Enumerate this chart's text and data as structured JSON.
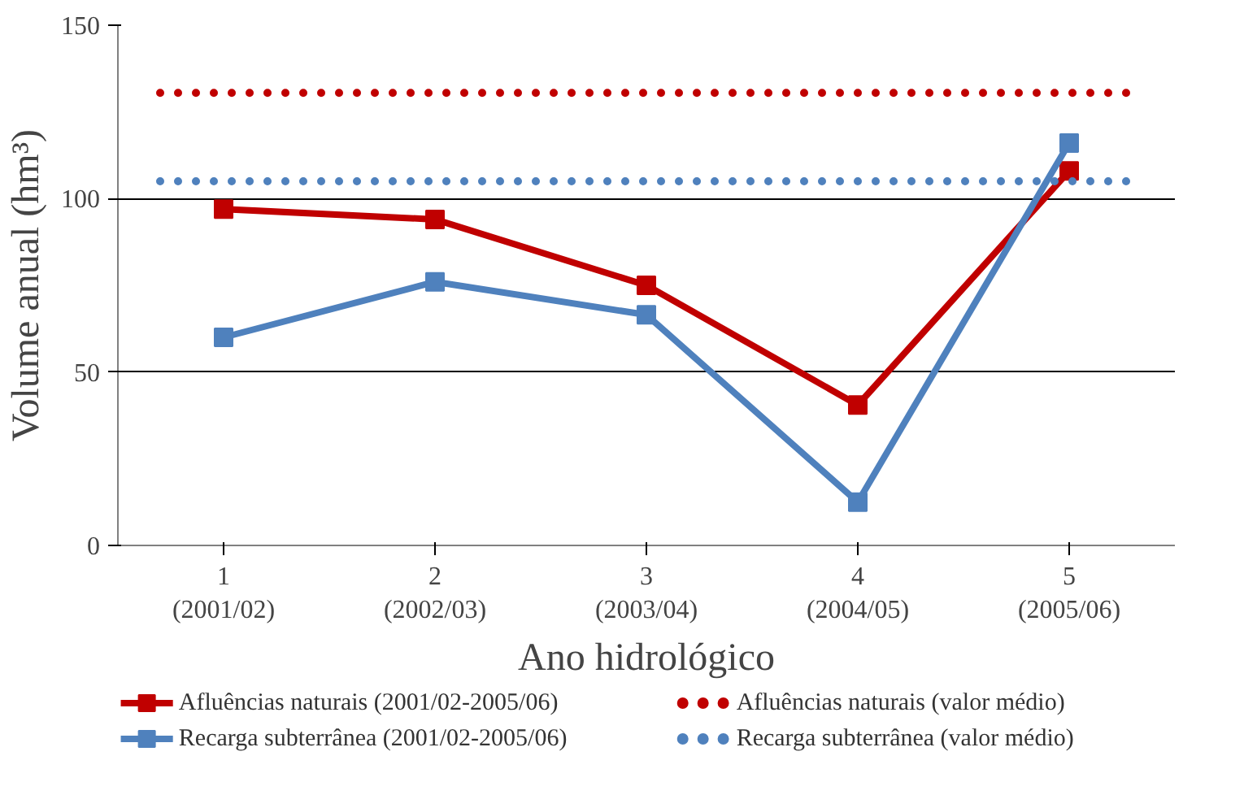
{
  "chart_data": {
    "type": "line",
    "xlabel": "Ano hidrológico",
    "ylabel": "Volume anual (hm³)",
    "categories": [
      "1\n(2001/02)",
      "2\n(2002/03)",
      "3\n(2003/04)",
      "4\n(2004/05)",
      "5\n(2005/06)"
    ],
    "series": [
      {
        "name": "Afluências naturais (2001/02-2005/06)",
        "color": "#c00000",
        "values": [
          97,
          94,
          75,
          40.5,
          108
        ]
      },
      {
        "name": "Recarga subterrânea (2001/02-2005/06)",
        "color": "#4f81bd",
        "values": [
          60,
          76,
          66.5,
          12.5,
          116
        ]
      }
    ],
    "ref_lines": [
      {
        "axis": "y",
        "value": 130.5,
        "label": "Afluências naturais (valor médio)",
        "color": "#c00000",
        "line_style": "dotted"
      },
      {
        "axis": "y",
        "value": 105,
        "label": "Recarga subterrânea (valor médio)",
        "color": "#4f81bd",
        "line_style": "dotted"
      }
    ],
    "ylim": [
      0,
      150
    ],
    "yticks": [
      0,
      50,
      100,
      150
    ],
    "grid": "y",
    "legend": "bottom",
    "marker": "square",
    "line_style": "solid"
  }
}
